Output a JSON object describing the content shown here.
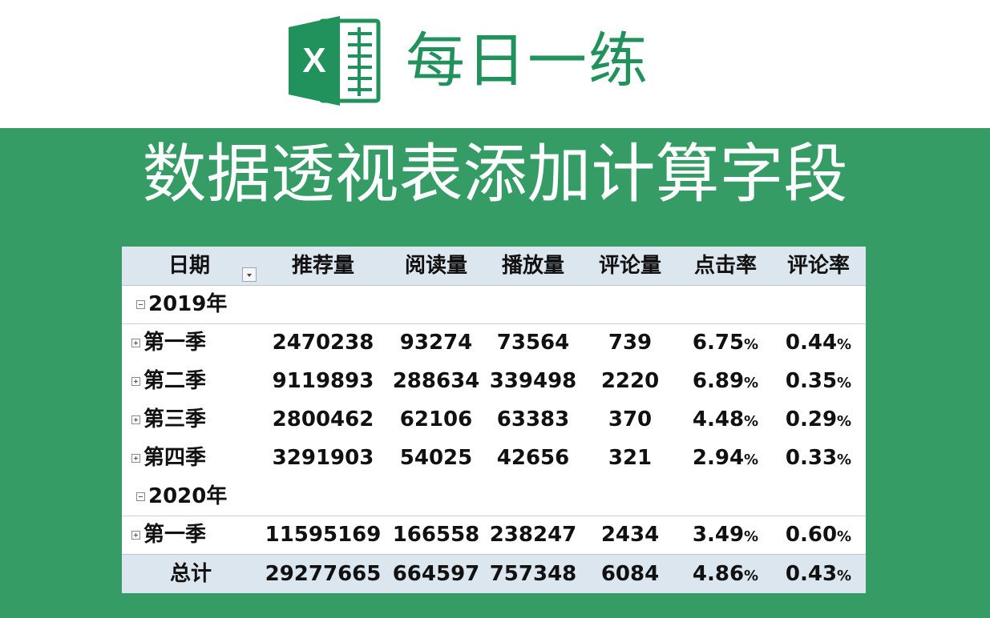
{
  "header": {
    "logo_letter": "X",
    "title": "每日一练"
  },
  "banner": {
    "title": "数据透视表添加计算字段"
  },
  "colors": {
    "brand_green": "#21925b",
    "banner_green": "#359c66",
    "pivot_header_bg": "#dce6ee"
  },
  "pivot": {
    "columns": [
      "日期",
      "推荐量",
      "阅读量",
      "播放量",
      "评论量",
      "点击率",
      "评论率"
    ],
    "groups": [
      {
        "label": "2019年",
        "rows": [
          {
            "label": "第一季",
            "values": [
              "2470238",
              "93274",
              "73564",
              "739"
            ],
            "click": "6.75",
            "comment": "0.44"
          },
          {
            "label": "第二季",
            "values": [
              "9119893",
              "288634",
              "339498",
              "2220"
            ],
            "click": "6.89",
            "comment": "0.35"
          },
          {
            "label": "第三季",
            "values": [
              "2800462",
              "62106",
              "63383",
              "370"
            ],
            "click": "4.48",
            "comment": "0.29"
          },
          {
            "label": "第四季",
            "values": [
              "3291903",
              "54025",
              "42656",
              "321"
            ],
            "click": "2.94",
            "comment": "0.33"
          }
        ]
      },
      {
        "label": "2020年",
        "rows": [
          {
            "label": "第一季",
            "values": [
              "11595169",
              "166558",
              "238247",
              "2434"
            ],
            "click": "3.49",
            "comment": "0.60"
          }
        ]
      }
    ],
    "total": {
      "label": "总计",
      "values": [
        "29277665",
        "664597",
        "757348",
        "6084"
      ],
      "click": "4.86",
      "comment": "0.43"
    },
    "percent_sign": "%"
  }
}
